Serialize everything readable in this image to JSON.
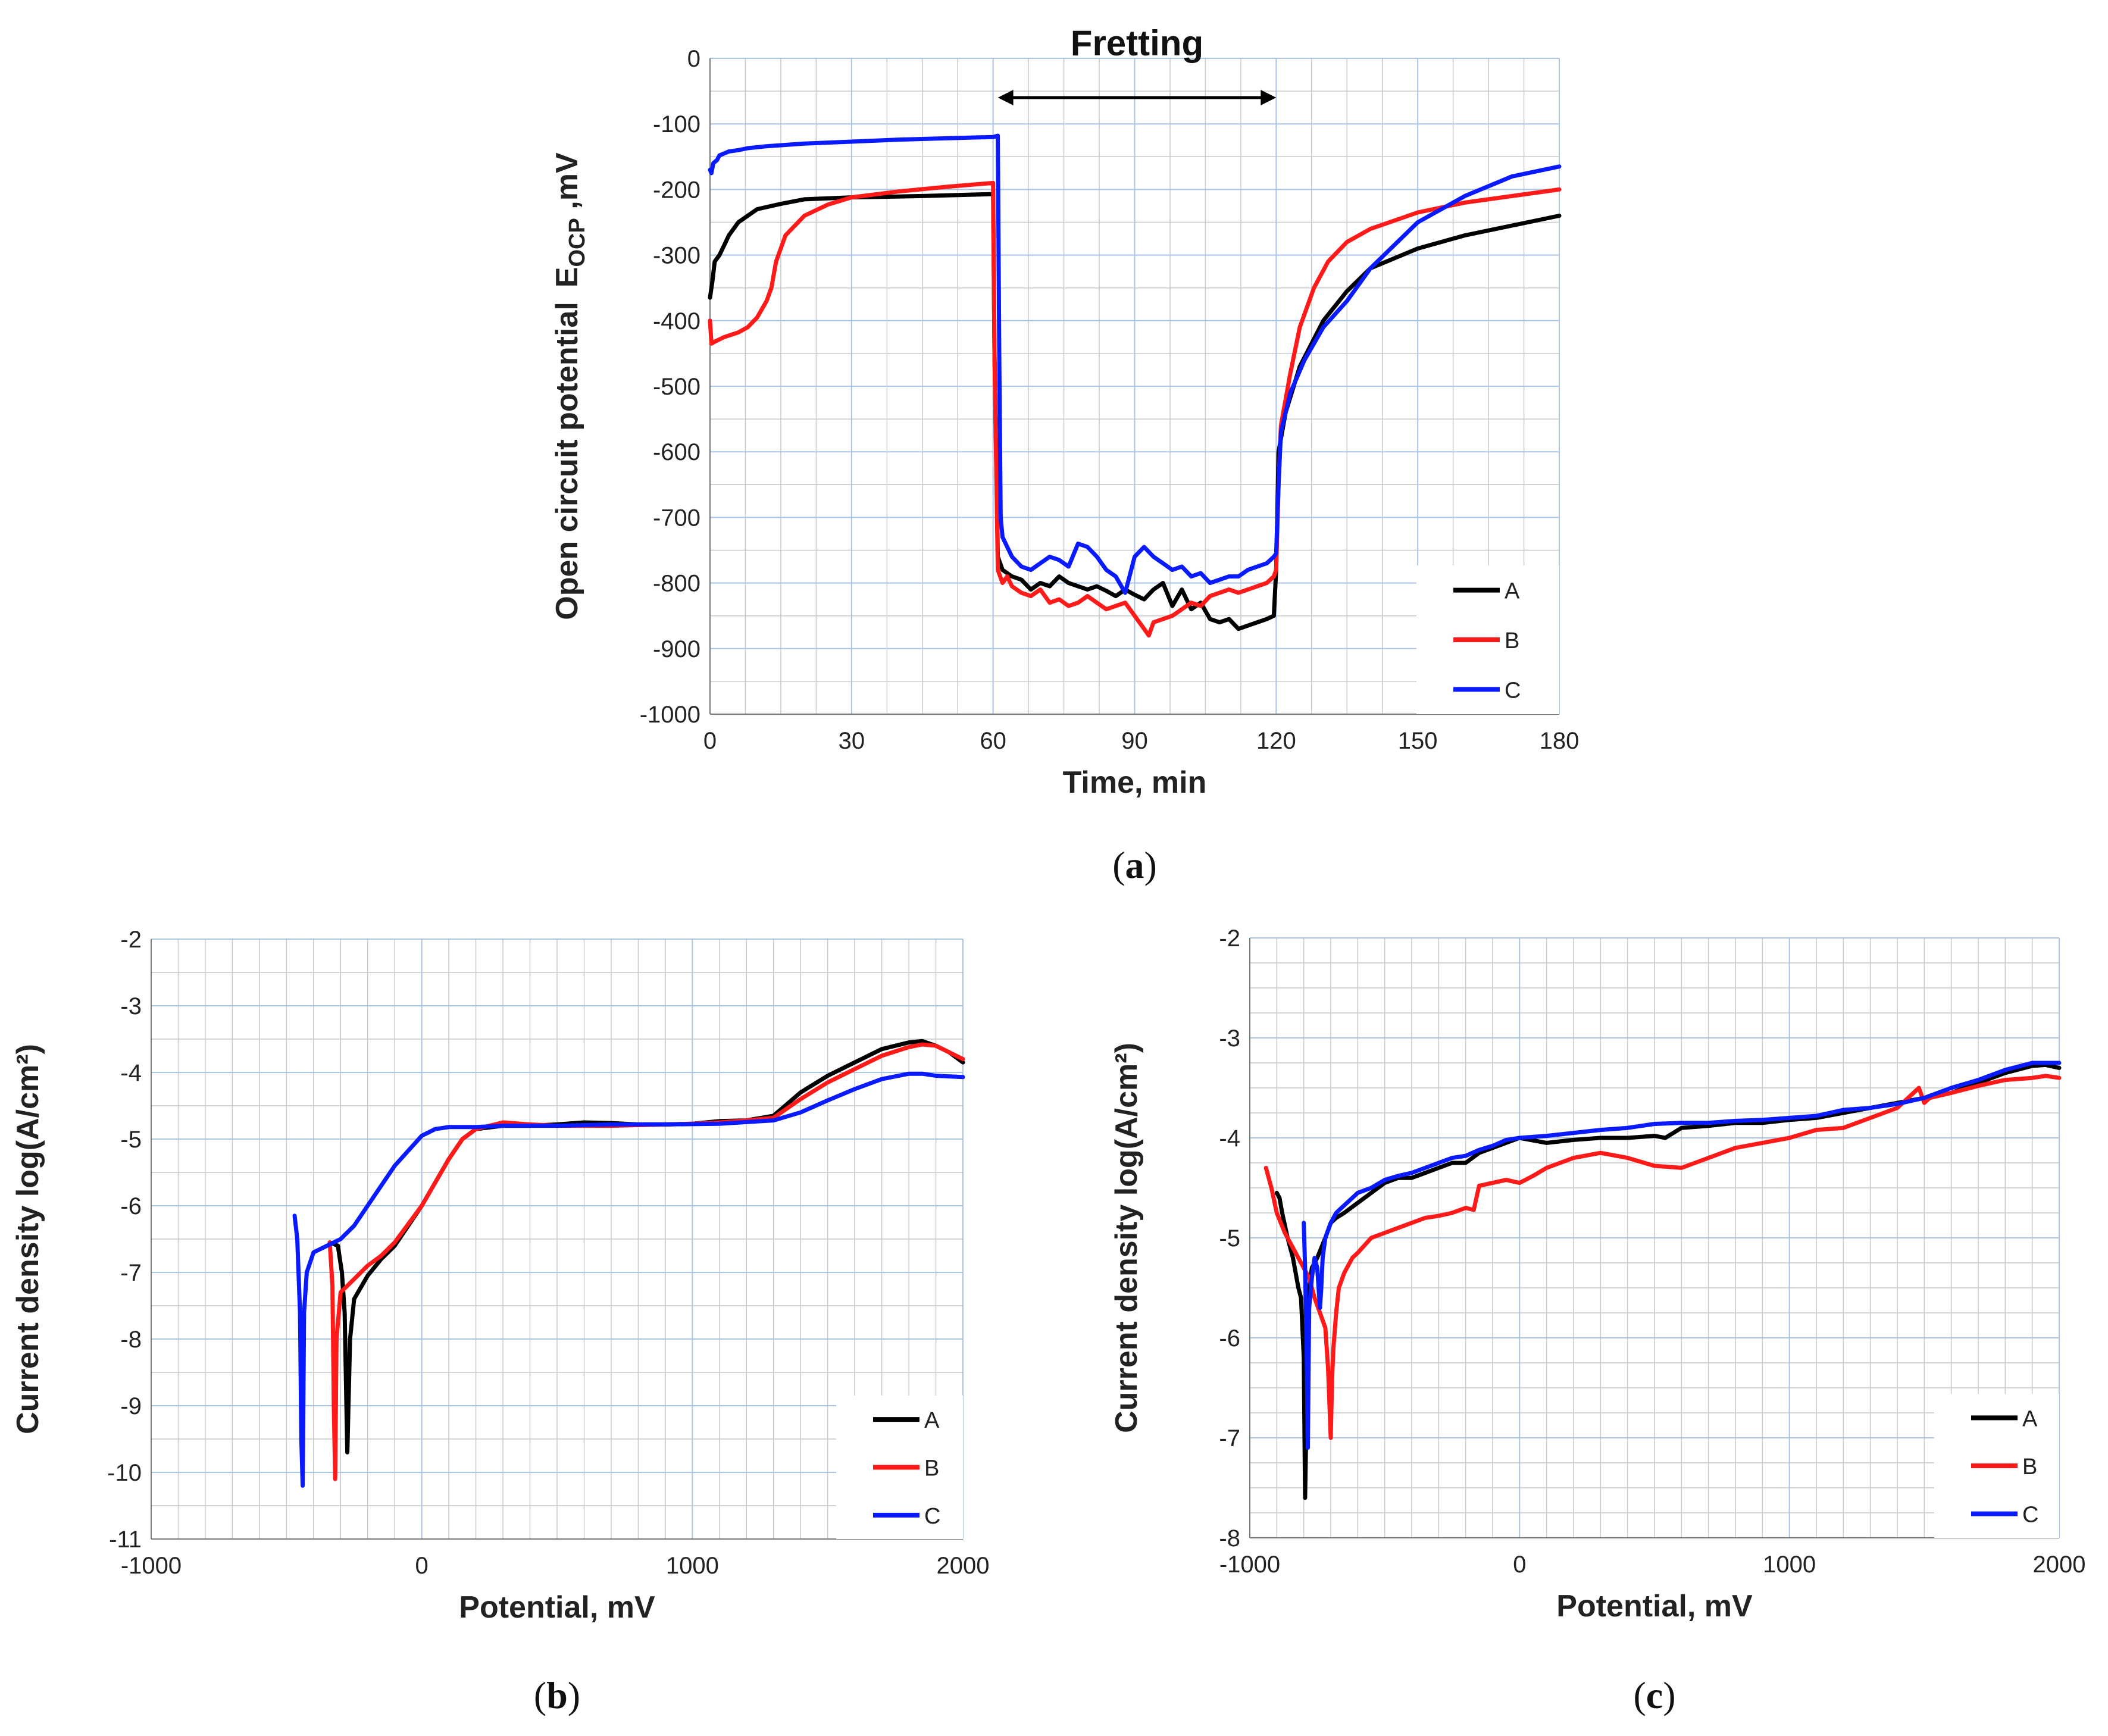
{
  "colors": {
    "A": "#000000",
    "B": "#ff1a1a",
    "C": "#0a1aff"
  },
  "chart_data": [
    {
      "id": "a",
      "type": "line",
      "caption": "a",
      "xlabel": "Time, min",
      "ylabel": "Open circuit potential",
      "ylabel_symbol": "E",
      "ylabel_subscript": "OCP",
      "ylabel_unit": " ,mV",
      "xlim": [
        0,
        180
      ],
      "ylim": [
        -1000,
        0
      ],
      "xticks": [
        0,
        30,
        60,
        90,
        120,
        150,
        180
      ],
      "yticks": [
        0,
        -100,
        -200,
        -300,
        -400,
        -500,
        -600,
        -700,
        -800,
        -900,
        -1000
      ],
      "annotation": {
        "text": "Fretting",
        "x_start": 61,
        "x_end": 120
      },
      "legend": [
        "A",
        "B",
        "C"
      ],
      "legend_position": "bottom-right",
      "series": [
        {
          "name": "A",
          "x": [
            0,
            0.5,
            1,
            2,
            3,
            4,
            6,
            8,
            10,
            15,
            20,
            30,
            45,
            60,
            60.3,
            61,
            62,
            64,
            66,
            68,
            70,
            72,
            74,
            76,
            78,
            80,
            82,
            84,
            86,
            88,
            90,
            92,
            94,
            96,
            98,
            100,
            102,
            104,
            106,
            108,
            110,
            112,
            114,
            116,
            118,
            119.5,
            120,
            120.5,
            122,
            125,
            130,
            135,
            140,
            150,
            160,
            170,
            180
          ],
          "y": [
            -365,
            -340,
            -310,
            -300,
            -285,
            -270,
            -250,
            -240,
            -230,
            -222,
            -215,
            -212,
            -210,
            -207,
            -450,
            -760,
            -780,
            -790,
            -795,
            -810,
            -800,
            -805,
            -790,
            -800,
            -805,
            -810,
            -805,
            -812,
            -820,
            -810,
            -818,
            -825,
            -810,
            -800,
            -835,
            -810,
            -840,
            -830,
            -855,
            -860,
            -855,
            -870,
            -865,
            -860,
            -855,
            -850,
            -780,
            -600,
            -540,
            -470,
            -400,
            -355,
            -320,
            -290,
            -270,
            -255,
            -240
          ]
        },
        {
          "name": "B",
          "x": [
            0,
            0.3,
            1,
            3,
            6,
            8,
            10,
            12,
            13,
            14,
            16,
            20,
            25,
            30,
            40,
            50,
            60,
            60.3,
            61,
            62,
            63,
            64,
            66,
            68,
            70,
            72,
            74,
            76,
            78,
            80,
            82,
            84,
            86,
            88,
            90,
            92,
            93,
            94,
            96,
            98,
            100,
            102,
            104,
            106,
            108,
            110,
            112,
            114,
            116,
            118,
            119.5,
            120,
            120.5,
            121,
            123,
            125,
            128,
            131,
            135,
            140,
            150,
            160,
            170,
            180
          ],
          "y": [
            -400,
            -435,
            -432,
            -425,
            -418,
            -410,
            -395,
            -370,
            -350,
            -310,
            -270,
            -240,
            -223,
            -212,
            -203,
            -196,
            -190,
            -450,
            -780,
            -800,
            -790,
            -805,
            -815,
            -820,
            -810,
            -830,
            -825,
            -835,
            -830,
            -820,
            -830,
            -840,
            -835,
            -830,
            -850,
            -870,
            -880,
            -860,
            -855,
            -850,
            -840,
            -830,
            -835,
            -820,
            -815,
            -810,
            -815,
            -810,
            -805,
            -800,
            -790,
            -780,
            -650,
            -560,
            -480,
            -410,
            -350,
            -310,
            -280,
            -260,
            -235,
            -220,
            -210,
            -200
          ]
        },
        {
          "name": "C",
          "x": [
            0,
            0.3,
            0.7,
            1.5,
            2,
            3,
            4,
            6,
            8,
            12,
            20,
            30,
            40,
            50,
            60,
            61,
            61.3,
            61.6,
            62,
            64,
            66,
            68,
            70,
            72,
            74,
            76,
            78,
            80,
            82,
            84,
            86,
            88,
            90,
            92,
            94,
            96,
            98,
            100,
            102,
            104,
            106,
            108,
            110,
            112,
            114,
            116,
            118,
            119.5,
            120,
            120.5,
            121,
            123,
            126,
            130,
            135,
            140,
            150,
            160,
            170,
            180
          ],
          "y": [
            -170,
            -175,
            -160,
            -155,
            -148,
            -145,
            -142,
            -140,
            -137,
            -134,
            -130,
            -127,
            -124,
            -122,
            -120,
            -118,
            -450,
            -700,
            -730,
            -760,
            -775,
            -780,
            -770,
            -760,
            -765,
            -775,
            -740,
            -745,
            -760,
            -780,
            -790,
            -815,
            -760,
            -745,
            -760,
            -770,
            -780,
            -775,
            -790,
            -785,
            -800,
            -795,
            -790,
            -790,
            -780,
            -775,
            -770,
            -760,
            -755,
            -650,
            -570,
            -510,
            -460,
            -410,
            -370,
            -320,
            -250,
            -210,
            -180,
            -165
          ]
        }
      ]
    },
    {
      "id": "b",
      "type": "line",
      "caption": "b",
      "xlabel": "Potential, mV",
      "ylabel": "Current density log(A/cm²)",
      "xlim": [
        -1000,
        2000
      ],
      "ylim": [
        -11,
        -2
      ],
      "xticks": [
        -1000,
        0,
        1000,
        2000
      ],
      "yticks": [
        -2,
        -3,
        -4,
        -5,
        -6,
        -7,
        -8,
        -9,
        -10,
        -11
      ],
      "legend": [
        "A",
        "B",
        "C"
      ],
      "legend_position": "bottom-right",
      "series": [
        {
          "name": "A",
          "x": [
            -340,
            -310,
            -295,
            -285,
            -275,
            -265,
            -250,
            -200,
            -150,
            -100,
            0,
            100,
            150,
            200,
            300,
            400,
            500,
            600,
            700,
            800,
            900,
            1000,
            1100,
            1200,
            1300,
            1400,
            1500,
            1600,
            1700,
            1800,
            1850,
            1900,
            1950,
            2000
          ],
          "y": [
            -6.55,
            -6.6,
            -7.0,
            -7.6,
            -9.7,
            -8.0,
            -7.4,
            -7.05,
            -6.8,
            -6.6,
            -6.0,
            -5.3,
            -5.0,
            -4.85,
            -4.8,
            -4.8,
            -4.78,
            -4.75,
            -4.76,
            -4.78,
            -4.78,
            -4.77,
            -4.73,
            -4.72,
            -4.65,
            -4.3,
            -4.05,
            -3.85,
            -3.65,
            -3.55,
            -3.53,
            -3.6,
            -3.7,
            -3.85
          ]
        },
        {
          "name": "B",
          "x": [
            -340,
            -330,
            -325,
            -320,
            -315,
            -300,
            -250,
            -200,
            -150,
            -100,
            0,
            100,
            150,
            200,
            300,
            400,
            500,
            600,
            700,
            800,
            900,
            1000,
            1100,
            1200,
            1300,
            1400,
            1500,
            1600,
            1700,
            1800,
            1850,
            1900,
            1950,
            2000
          ],
          "y": [
            -6.55,
            -7.2,
            -9.0,
            -10.1,
            -8.0,
            -7.3,
            -7.1,
            -6.9,
            -6.75,
            -6.55,
            -6.0,
            -5.3,
            -5.0,
            -4.85,
            -4.75,
            -4.78,
            -4.8,
            -4.8,
            -4.8,
            -4.79,
            -4.78,
            -4.77,
            -4.75,
            -4.72,
            -4.68,
            -4.4,
            -4.15,
            -3.95,
            -3.75,
            -3.62,
            -3.58,
            -3.6,
            -3.7,
            -3.8
          ]
        },
        {
          "name": "C",
          "x": [
            -470,
            -460,
            -450,
            -445,
            -440,
            -435,
            -425,
            -400,
            -350,
            -300,
            -250,
            -200,
            -100,
            0,
            50,
            100,
            150,
            200,
            300,
            500,
            700,
            900,
            1100,
            1300,
            1400,
            1500,
            1600,
            1700,
            1800,
            1850,
            1900,
            2000
          ],
          "y": [
            -6.15,
            -6.5,
            -7.6,
            -9.5,
            -10.2,
            -7.6,
            -7.0,
            -6.7,
            -6.6,
            -6.5,
            -6.3,
            -6.0,
            -5.4,
            -4.95,
            -4.85,
            -4.82,
            -4.82,
            -4.82,
            -4.8,
            -4.8,
            -4.78,
            -4.78,
            -4.77,
            -4.72,
            -4.6,
            -4.42,
            -4.25,
            -4.1,
            -4.02,
            -4.02,
            -4.05,
            -4.07
          ]
        }
      ]
    },
    {
      "id": "c",
      "type": "line",
      "caption": "c",
      "xlabel": "Potential, mV",
      "ylabel": "Current density log(A/cm²)",
      "xlim": [
        -1000,
        2000
      ],
      "ylim": [
        -8,
        -2
      ],
      "xticks": [
        -1000,
        0,
        1000,
        2000
      ],
      "yticks": [
        -2,
        -3,
        -4,
        -5,
        -6,
        -7,
        -8
      ],
      "legend": [
        "A",
        "B",
        "C"
      ],
      "legend_position": "bottom-right",
      "series": [
        {
          "name": "A",
          "x": [
            -900,
            -890,
            -880,
            -860,
            -840,
            -820,
            -810,
            -800,
            -795,
            -790,
            -785,
            -780,
            -770,
            -750,
            -720,
            -700,
            -680,
            -650,
            -600,
            -550,
            -500,
            -450,
            -400,
            -350,
            -300,
            -250,
            -200,
            -150,
            -100,
            -50,
            0,
            100,
            200,
            300,
            400,
            500,
            540,
            600,
            700,
            800,
            900,
            1000,
            1100,
            1200,
            1300,
            1400,
            1500,
            1600,
            1700,
            1800,
            1900,
            1950,
            2000
          ],
          "y": [
            -4.55,
            -4.6,
            -4.75,
            -5.0,
            -5.2,
            -5.5,
            -5.6,
            -6.2,
            -7.6,
            -6.8,
            -6.0,
            -5.5,
            -5.3,
            -5.2,
            -5.0,
            -4.85,
            -4.8,
            -4.75,
            -4.65,
            -4.55,
            -4.45,
            -4.4,
            -4.4,
            -4.35,
            -4.3,
            -4.25,
            -4.25,
            -4.15,
            -4.1,
            -4.05,
            -4.0,
            -4.05,
            -4.02,
            -4.0,
            -4.0,
            -3.98,
            -4.0,
            -3.9,
            -3.88,
            -3.85,
            -3.85,
            -3.82,
            -3.8,
            -3.75,
            -3.7,
            -3.65,
            -3.6,
            -3.55,
            -3.45,
            -3.35,
            -3.28,
            -3.27,
            -3.3
          ]
        },
        {
          "name": "B",
          "x": [
            -940,
            -920,
            -900,
            -870,
            -840,
            -810,
            -780,
            -760,
            -740,
            -720,
            -710,
            -700,
            -695,
            -690,
            -680,
            -670,
            -650,
            -620,
            -600,
            -550,
            -500,
            -450,
            -400,
            -350,
            -300,
            -250,
            -200,
            -170,
            -150,
            -100,
            -50,
            0,
            50,
            100,
            150,
            200,
            300,
            400,
            500,
            600,
            700,
            800,
            900,
            1000,
            1100,
            1200,
            1300,
            1400,
            1480,
            1500,
            1520,
            1600,
            1700,
            1800,
            1900,
            1950,
            2000
          ],
          "y": [
            -4.3,
            -4.5,
            -4.75,
            -4.95,
            -5.1,
            -5.25,
            -5.4,
            -5.6,
            -5.75,
            -5.9,
            -6.3,
            -7.0,
            -6.4,
            -6.1,
            -5.75,
            -5.5,
            -5.35,
            -5.2,
            -5.15,
            -5.0,
            -4.95,
            -4.9,
            -4.85,
            -4.8,
            -4.78,
            -4.75,
            -4.7,
            -4.72,
            -4.48,
            -4.45,
            -4.42,
            -4.45,
            -4.38,
            -4.3,
            -4.25,
            -4.2,
            -4.15,
            -4.2,
            -4.28,
            -4.3,
            -4.2,
            -4.1,
            -4.05,
            -4.0,
            -3.92,
            -3.9,
            -3.8,
            -3.7,
            -3.5,
            -3.65,
            -3.6,
            -3.55,
            -3.48,
            -3.42,
            -3.4,
            -3.38,
            -3.4
          ]
        },
        {
          "name": "C",
          "x": [
            -800,
            -795,
            -790,
            -785,
            -780,
            -770,
            -760,
            -750,
            -740,
            -735,
            -730,
            -720,
            -700,
            -680,
            -660,
            -640,
            -620,
            -600,
            -550,
            -500,
            -450,
            -400,
            -350,
            -300,
            -250,
            -200,
            -150,
            -100,
            -50,
            0,
            100,
            200,
            300,
            400,
            500,
            600,
            700,
            800,
            900,
            1000,
            1100,
            1200,
            1300,
            1400,
            1500,
            1600,
            1700,
            1800,
            1900,
            2000
          ],
          "y": [
            -4.85,
            -5.3,
            -6.0,
            -7.1,
            -5.7,
            -5.4,
            -5.2,
            -5.3,
            -5.7,
            -5.5,
            -5.2,
            -5.0,
            -4.85,
            -4.75,
            -4.7,
            -4.65,
            -4.6,
            -4.55,
            -4.5,
            -4.42,
            -4.38,
            -4.35,
            -4.3,
            -4.25,
            -4.2,
            -4.18,
            -4.12,
            -4.08,
            -4.02,
            -4.0,
            -3.98,
            -3.95,
            -3.92,
            -3.9,
            -3.86,
            -3.85,
            -3.85,
            -3.83,
            -3.82,
            -3.8,
            -3.78,
            -3.72,
            -3.7,
            -3.66,
            -3.6,
            -3.5,
            -3.42,
            -3.32,
            -3.25,
            -3.25
          ]
        }
      ]
    }
  ]
}
